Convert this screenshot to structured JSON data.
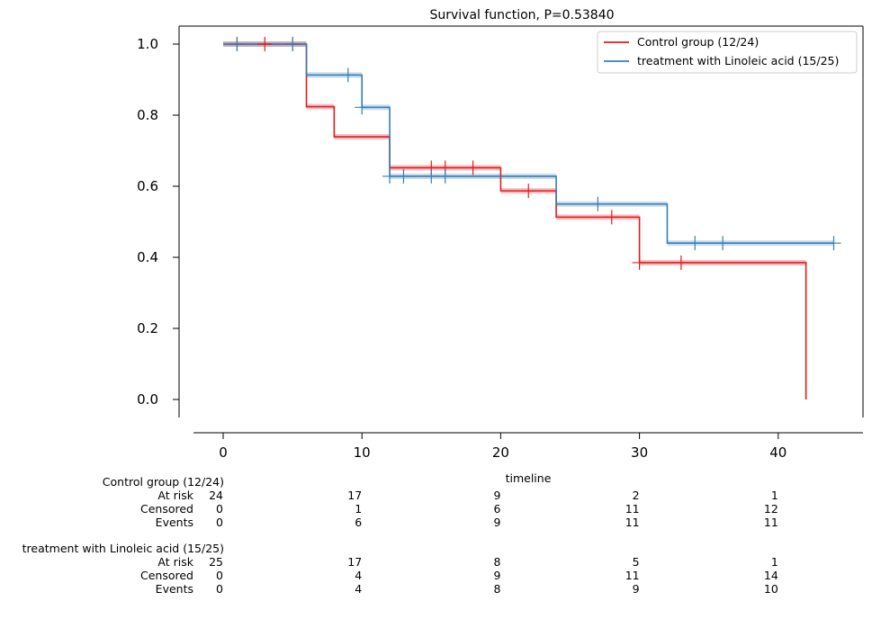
{
  "chart_data": {
    "type": "line",
    "title": "Survival function, P=0.53840",
    "xlabel": "timeline",
    "ylabel": "",
    "xlim": [
      -2,
      46
    ],
    "ylim": [
      -0.05,
      1.05
    ],
    "x_ticks": [
      0,
      10,
      20,
      30,
      40
    ],
    "y_ticks": [
      0.0,
      0.2,
      0.4,
      0.6,
      0.8,
      1.0
    ],
    "x_tick_labels": [
      "0",
      "10",
      "20",
      "30",
      "40"
    ],
    "y_tick_labels": [
      "0.0",
      "0.2",
      "0.4",
      "0.6",
      "0.8",
      "1.0"
    ],
    "legend_position": "top-right",
    "series": [
      {
        "name": "Control group (12/24)",
        "color": "#e41a1c",
        "steps": [
          [
            0,
            1.0
          ],
          [
            6,
            0.824
          ],
          [
            8,
            0.739
          ],
          [
            12,
            0.652
          ],
          [
            20,
            0.587
          ],
          [
            24,
            0.513
          ],
          [
            30,
            0.385
          ],
          [
            42,
            0.0
          ]
        ],
        "censor_points": [
          [
            1,
            1.0
          ],
          [
            3,
            1.0
          ],
          [
            5,
            1.0
          ],
          [
            15,
            0.652
          ],
          [
            16,
            0.652
          ],
          [
            18,
            0.652
          ],
          [
            22,
            0.587
          ],
          [
            28,
            0.513
          ],
          [
            30,
            0.385
          ],
          [
            33,
            0.385
          ]
        ]
      },
      {
        "name": "treatment with Linoleic acid (15/25)",
        "color": "#377eb8",
        "steps": [
          [
            0,
            1.0
          ],
          [
            6,
            0.913
          ],
          [
            10,
            0.822
          ],
          [
            12,
            0.628
          ],
          [
            24,
            0.55
          ],
          [
            32,
            0.44
          ],
          [
            44,
            0.44
          ]
        ],
        "censor_points": [
          [
            1,
            1.0
          ],
          [
            5,
            1.0
          ],
          [
            9,
            0.913
          ],
          [
            10,
            0.822
          ],
          [
            12,
            0.628
          ],
          [
            13,
            0.628
          ],
          [
            15,
            0.628
          ],
          [
            16,
            0.628
          ],
          [
            27,
            0.55
          ],
          [
            34,
            0.44
          ],
          [
            36,
            0.44
          ],
          [
            44,
            0.44
          ]
        ]
      }
    ],
    "risk_table": {
      "times": [
        0,
        10,
        20,
        30,
        40
      ],
      "groups": [
        {
          "name": "Control group (12/24)",
          "rows": [
            {
              "label": "At risk",
              "values": [
                "24",
                "17",
                "9",
                "2",
                "1"
              ]
            },
            {
              "label": "Censored",
              "values": [
                "0",
                "1",
                "6",
                "11",
                "12"
              ]
            },
            {
              "label": "Events",
              "values": [
                "0",
                "6",
                "9",
                "11",
                "11"
              ]
            }
          ]
        },
        {
          "name": "treatment with Linoleic acid (15/25)",
          "rows": [
            {
              "label": "At risk",
              "values": [
                "25",
                "17",
                "8",
                "5",
                "1"
              ]
            },
            {
              "label": "Censored",
              "values": [
                "0",
                "4",
                "9",
                "11",
                "14"
              ]
            },
            {
              "label": "Events",
              "values": [
                "0",
                "4",
                "8",
                "9",
                "10"
              ]
            }
          ]
        }
      ]
    }
  }
}
